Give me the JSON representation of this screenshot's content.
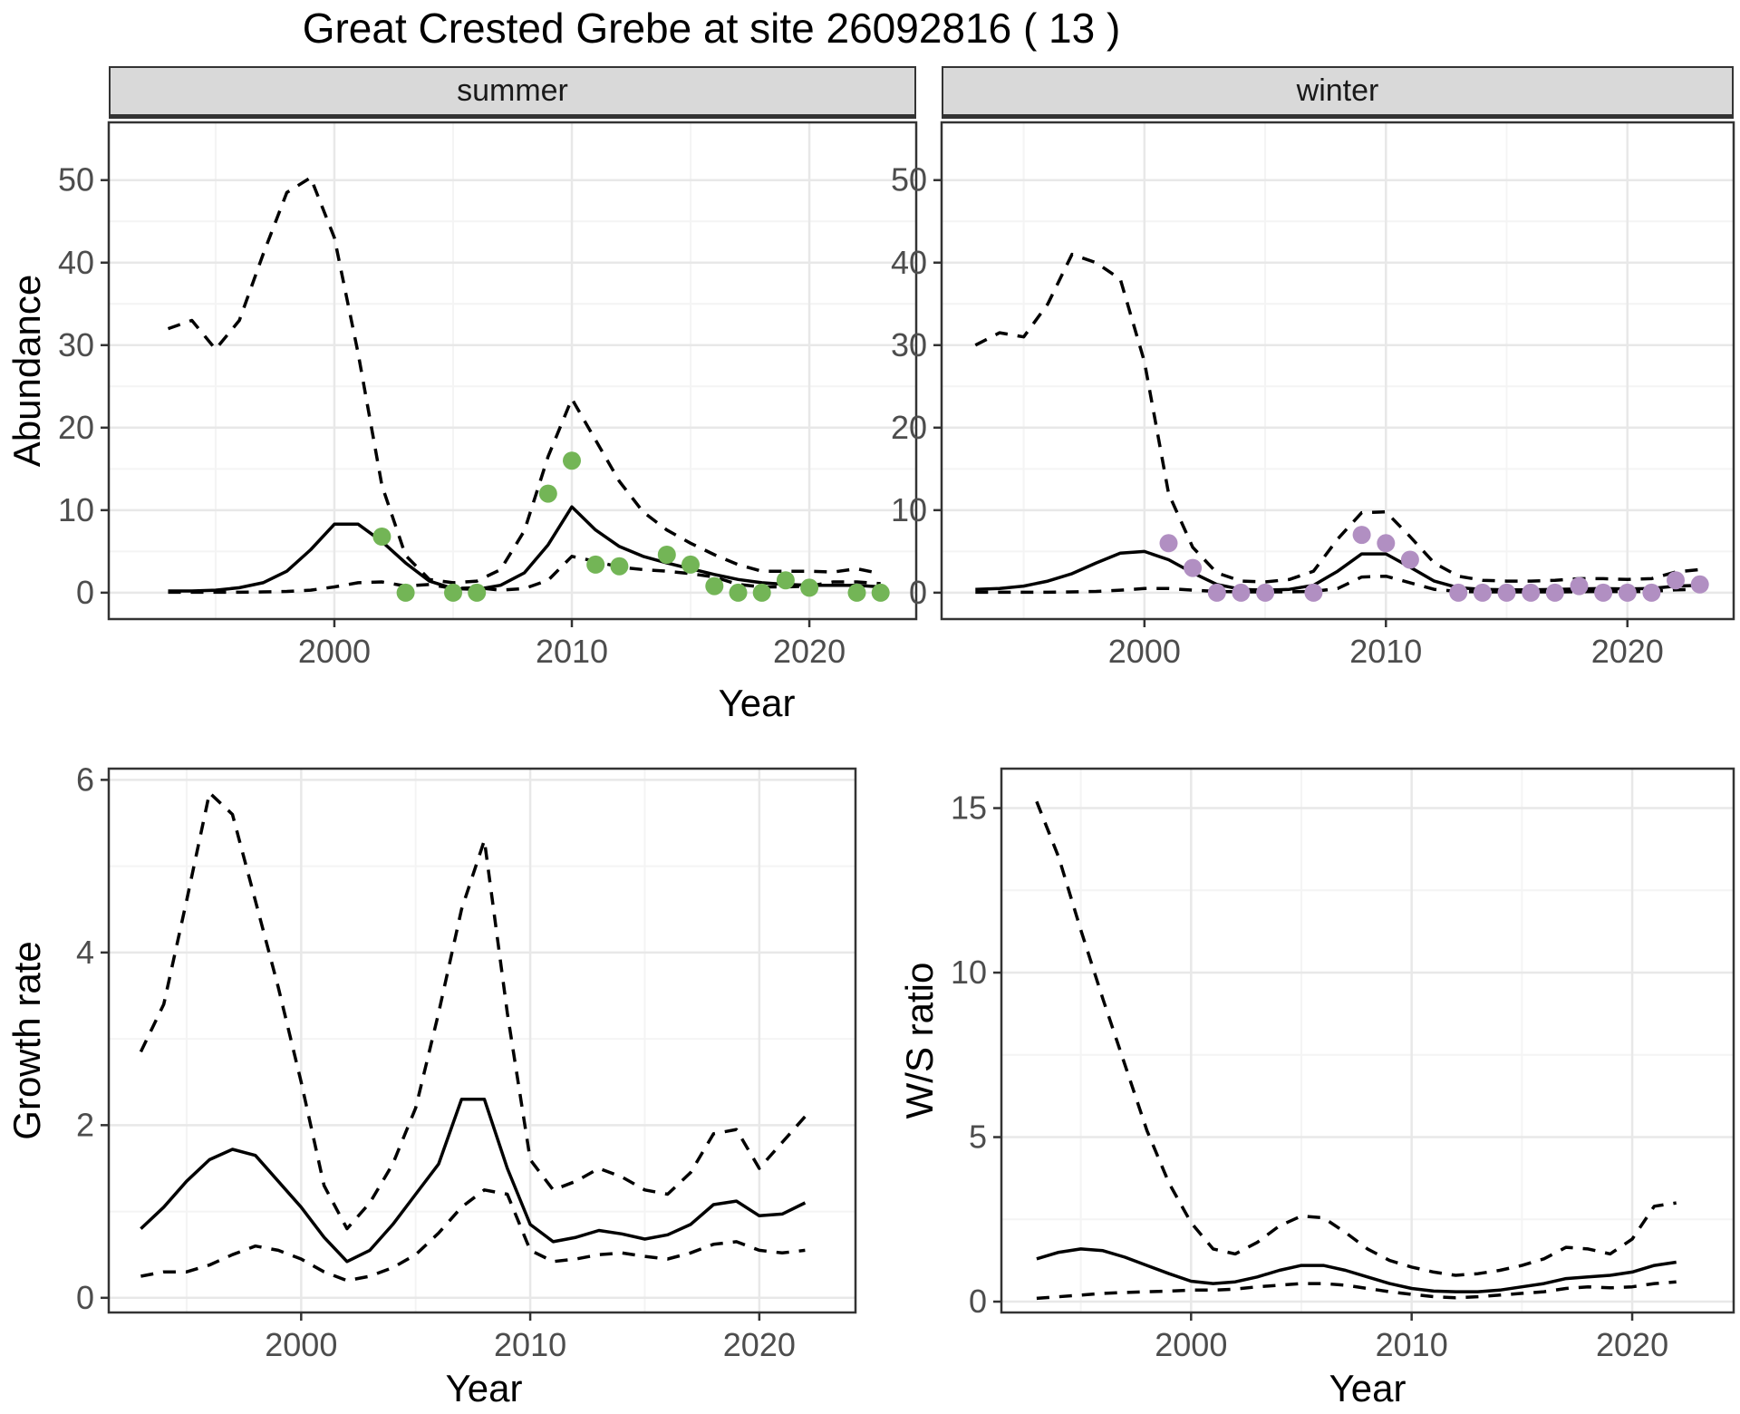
{
  "title": "Great Crested Grebe at site 26092816 ( 13 )",
  "colors": {
    "summer_point": "#73b556",
    "winter_point": "#b18fc2",
    "line": "#000000",
    "panel_border": "#333333",
    "grid_major": "#e8e8e8",
    "grid_minor": "#f4f4f4",
    "strip_bg": "#d9d9d9",
    "tick_text": "#4d4d4d"
  },
  "chart_data": [
    {
      "type": "line",
      "panel": "summer",
      "strip_label": "summer",
      "ylabel": "Abundance",
      "xlabel": "Year",
      "xlim": [
        1990.5,
        2024.5
      ],
      "ylim": [
        -3.2,
        57
      ],
      "x_ticks": [
        2000,
        2010,
        2020
      ],
      "x_minor": [
        1995,
        2005,
        2015
      ],
      "y_ticks": [
        0,
        10,
        20,
        30,
        40,
        50
      ],
      "y_minor": [
        5,
        15,
        25,
        35,
        45
      ],
      "x": [
        1993,
        1994,
        1995,
        1996,
        1997,
        1998,
        1999,
        2000,
        2001,
        2002,
        2003,
        2004,
        2005,
        2006,
        2007,
        2008,
        2009,
        2010,
        2011,
        2012,
        2013,
        2014,
        2015,
        2016,
        2017,
        2018,
        2019,
        2020,
        2021,
        2022,
        2023
      ],
      "series": [
        {
          "name": "fit",
          "style": "solid",
          "values": [
            0.2,
            0.2,
            0.3,
            0.6,
            1.2,
            2.6,
            5.2,
            8.3,
            8.3,
            6.2,
            3.6,
            1.4,
            0.5,
            0.4,
            0.9,
            2.4,
            5.8,
            10.4,
            7.6,
            5.6,
            4.4,
            3.6,
            2.9,
            2.2,
            1.6,
            1.2,
            1.0,
            0.9,
            0.9,
            0.9,
            0.7
          ]
        },
        {
          "name": "upper_ci",
          "style": "dashed",
          "values": [
            32,
            33,
            29.5,
            33,
            41,
            48.5,
            50.3,
            43,
            29,
            13,
            4.5,
            1.6,
            1.2,
            1.4,
            2.8,
            7.5,
            16.5,
            23.5,
            18.5,
            13.5,
            9.8,
            7.6,
            6.0,
            4.6,
            3.4,
            2.6,
            2.6,
            2.6,
            2.5,
            2.9,
            2.3
          ]
        },
        {
          "name": "lower_ci",
          "style": "dashed",
          "values": [
            0.05,
            0.05,
            0.05,
            0.05,
            0.1,
            0.15,
            0.3,
            0.7,
            1.2,
            1.3,
            0.8,
            1.0,
            0.5,
            0.6,
            0.3,
            0.5,
            1.5,
            4.4,
            3.8,
            3.1,
            2.8,
            2.6,
            2.3,
            1.9,
            1.0,
            0.7,
            0.7,
            0.8,
            1.3,
            1.3,
            1.1
          ]
        }
      ],
      "points": {
        "name": "observed-counts-summer",
        "color": "#73b556",
        "x": [
          2002,
          2003,
          2005,
          2006,
          2009,
          2010,
          2011,
          2012,
          2014,
          2015,
          2016,
          2017,
          2018,
          2019,
          2020,
          2022,
          2023
        ],
        "values": [
          6.8,
          0,
          0,
          0,
          12,
          16,
          3.4,
          3.2,
          4.6,
          3.4,
          0.8,
          0,
          0,
          1.5,
          0.6,
          0,
          0
        ]
      }
    },
    {
      "type": "line",
      "panel": "winter",
      "strip_label": "winter",
      "ylabel": "Abundance",
      "xlabel": "Year",
      "xlim": [
        1991.6,
        2024.4
      ],
      "ylim": [
        -3.2,
        57
      ],
      "x_ticks": [
        2000,
        2010,
        2020
      ],
      "x_minor": [
        1995,
        2005,
        2015
      ],
      "y_ticks": [
        0,
        10,
        20,
        30,
        40,
        50
      ],
      "y_minor": [
        5,
        15,
        25,
        35,
        45
      ],
      "x": [
        1993,
        1994,
        1995,
        1996,
        1997,
        1998,
        1999,
        2000,
        2001,
        2002,
        2003,
        2004,
        2005,
        2006,
        2007,
        2008,
        2009,
        2010,
        2011,
        2012,
        2013,
        2014,
        2015,
        2016,
        2017,
        2018,
        2019,
        2020,
        2021,
        2022,
        2023
      ],
      "series": [
        {
          "name": "fit",
          "style": "solid",
          "values": [
            0.4,
            0.5,
            0.8,
            1.4,
            2.3,
            3.6,
            4.8,
            5.0,
            4.0,
            2.4,
            1.0,
            0.4,
            0.3,
            0.4,
            0.9,
            2.6,
            4.7,
            4.7,
            3.1,
            1.4,
            0.6,
            0.4,
            0.35,
            0.35,
            0.4,
            0.45,
            0.5,
            0.45,
            0.5,
            0.8,
            0.9
          ]
        },
        {
          "name": "upper_ci",
          "style": "dashed",
          "values": [
            30,
            31.5,
            31,
            35,
            41,
            40,
            38,
            28,
            12,
            5.5,
            2.4,
            1.4,
            1.3,
            1.6,
            2.6,
            6.5,
            9.7,
            9.8,
            6.8,
            3.6,
            2.0,
            1.5,
            1.4,
            1.4,
            1.5,
            1.7,
            1.7,
            1.6,
            1.7,
            2.5,
            2.8
          ]
        },
        {
          "name": "lower_ci",
          "style": "dashed",
          "values": [
            0.05,
            0.05,
            0.05,
            0.05,
            0.1,
            0.15,
            0.3,
            0.5,
            0.5,
            0.3,
            0.15,
            0.1,
            0.1,
            0.1,
            0.15,
            0.5,
            1.9,
            2.0,
            1.2,
            0.4,
            0.15,
            0.1,
            0.1,
            0.1,
            0.1,
            0.12,
            0.15,
            0.12,
            0.15,
            0.35,
            0.4
          ]
        }
      ],
      "points": {
        "name": "observed-counts-winter",
        "color": "#b18fc2",
        "x": [
          2001,
          2002,
          2003,
          2004,
          2005,
          2007,
          2009,
          2010,
          2011,
          2013,
          2014,
          2015,
          2016,
          2017,
          2018,
          2019,
          2020,
          2021,
          2022,
          2023
        ],
        "values": [
          6,
          3,
          0,
          0,
          0,
          0,
          7,
          6,
          4,
          0,
          0,
          0,
          0,
          0,
          0.8,
          0,
          0,
          0,
          1.5,
          1
        ]
      }
    },
    {
      "type": "line",
      "panel": "growth",
      "strip_label": "",
      "ylabel": "Growth rate",
      "xlabel": "Year",
      "xlim": [
        1991.6,
        2024.2
      ],
      "ylim": [
        -0.17,
        6.13
      ],
      "x_ticks": [
        2000,
        2010,
        2020
      ],
      "x_minor": [
        1995,
        2005,
        2015
      ],
      "y_ticks": [
        0,
        2,
        4,
        6
      ],
      "y_minor": [
        1,
        3,
        5
      ],
      "x": [
        1993,
        1994,
        1995,
        1996,
        1997,
        1998,
        1999,
        2000,
        2001,
        2002,
        2003,
        2004,
        2005,
        2006,
        2007,
        2008,
        2009,
        2010,
        2011,
        2012,
        2013,
        2014,
        2015,
        2016,
        2017,
        2018,
        2019,
        2020,
        2021,
        2022
      ],
      "series": [
        {
          "name": "fit",
          "style": "solid",
          "values": [
            0.8,
            1.05,
            1.35,
            1.6,
            1.72,
            1.65,
            1.35,
            1.05,
            0.7,
            0.42,
            0.55,
            0.85,
            1.2,
            1.55,
            2.3,
            2.3,
            1.5,
            0.85,
            0.65,
            0.7,
            0.78,
            0.74,
            0.68,
            0.73,
            0.85,
            1.08,
            1.12,
            0.95,
            0.97,
            1.1
          ]
        },
        {
          "name": "upper_ci",
          "style": "dashed",
          "values": [
            2.85,
            3.4,
            4.6,
            5.85,
            5.6,
            4.6,
            3.6,
            2.5,
            1.3,
            0.8,
            1.1,
            1.55,
            2.2,
            3.3,
            4.5,
            5.3,
            3.3,
            1.6,
            1.25,
            1.35,
            1.5,
            1.4,
            1.25,
            1.2,
            1.45,
            1.9,
            1.95,
            1.5,
            1.8,
            2.1
          ]
        },
        {
          "name": "lower_ci",
          "style": "dashed",
          "values": [
            0.25,
            0.3,
            0.3,
            0.38,
            0.5,
            0.6,
            0.55,
            0.45,
            0.3,
            0.2,
            0.25,
            0.35,
            0.5,
            0.75,
            1.05,
            1.25,
            1.2,
            0.55,
            0.42,
            0.45,
            0.5,
            0.52,
            0.48,
            0.45,
            0.52,
            0.62,
            0.65,
            0.55,
            0.52,
            0.55
          ]
        }
      ],
      "points": null
    },
    {
      "type": "line",
      "panel": "ws",
      "strip_label": "",
      "ylabel": "W/S ratio",
      "xlabel": "Year",
      "xlim": [
        1991.4,
        2024.6
      ],
      "ylim": [
        -0.33,
        16.2
      ],
      "x_ticks": [
        2000,
        2010,
        2020
      ],
      "x_minor": [
        1995,
        2005,
        2015
      ],
      "y_ticks": [
        0,
        5,
        10,
        15
      ],
      "y_minor": [
        2.5,
        7.5,
        12.5
      ],
      "x": [
        1993,
        1994,
        1995,
        1996,
        1997,
        1998,
        1999,
        2000,
        2001,
        2002,
        2003,
        2004,
        2005,
        2006,
        2007,
        2008,
        2009,
        2010,
        2011,
        2012,
        2013,
        2014,
        2015,
        2016,
        2017,
        2018,
        2019,
        2020,
        2021,
        2022
      ],
      "series": [
        {
          "name": "fit",
          "style": "solid",
          "values": [
            1.3,
            1.5,
            1.6,
            1.55,
            1.35,
            1.1,
            0.85,
            0.62,
            0.55,
            0.6,
            0.75,
            0.95,
            1.1,
            1.1,
            0.95,
            0.75,
            0.55,
            0.4,
            0.32,
            0.3,
            0.3,
            0.35,
            0.45,
            0.55,
            0.7,
            0.75,
            0.8,
            0.9,
            1.1,
            1.2
          ]
        },
        {
          "name": "upper_ci",
          "style": "dashed",
          "values": [
            15.2,
            13.5,
            11.3,
            9.2,
            7.2,
            5.2,
            3.6,
            2.4,
            1.6,
            1.45,
            1.8,
            2.3,
            2.6,
            2.55,
            2.1,
            1.6,
            1.25,
            1.05,
            0.9,
            0.8,
            0.85,
            0.95,
            1.1,
            1.3,
            1.65,
            1.6,
            1.45,
            1.9,
            2.9,
            3.0
          ]
        },
        {
          "name": "lower_ci",
          "style": "dashed",
          "values": [
            0.1,
            0.15,
            0.2,
            0.25,
            0.28,
            0.3,
            0.32,
            0.35,
            0.35,
            0.38,
            0.45,
            0.5,
            0.55,
            0.55,
            0.5,
            0.4,
            0.3,
            0.22,
            0.15,
            0.12,
            0.15,
            0.2,
            0.25,
            0.3,
            0.4,
            0.45,
            0.42,
            0.45,
            0.55,
            0.6
          ]
        }
      ],
      "points": null
    }
  ]
}
